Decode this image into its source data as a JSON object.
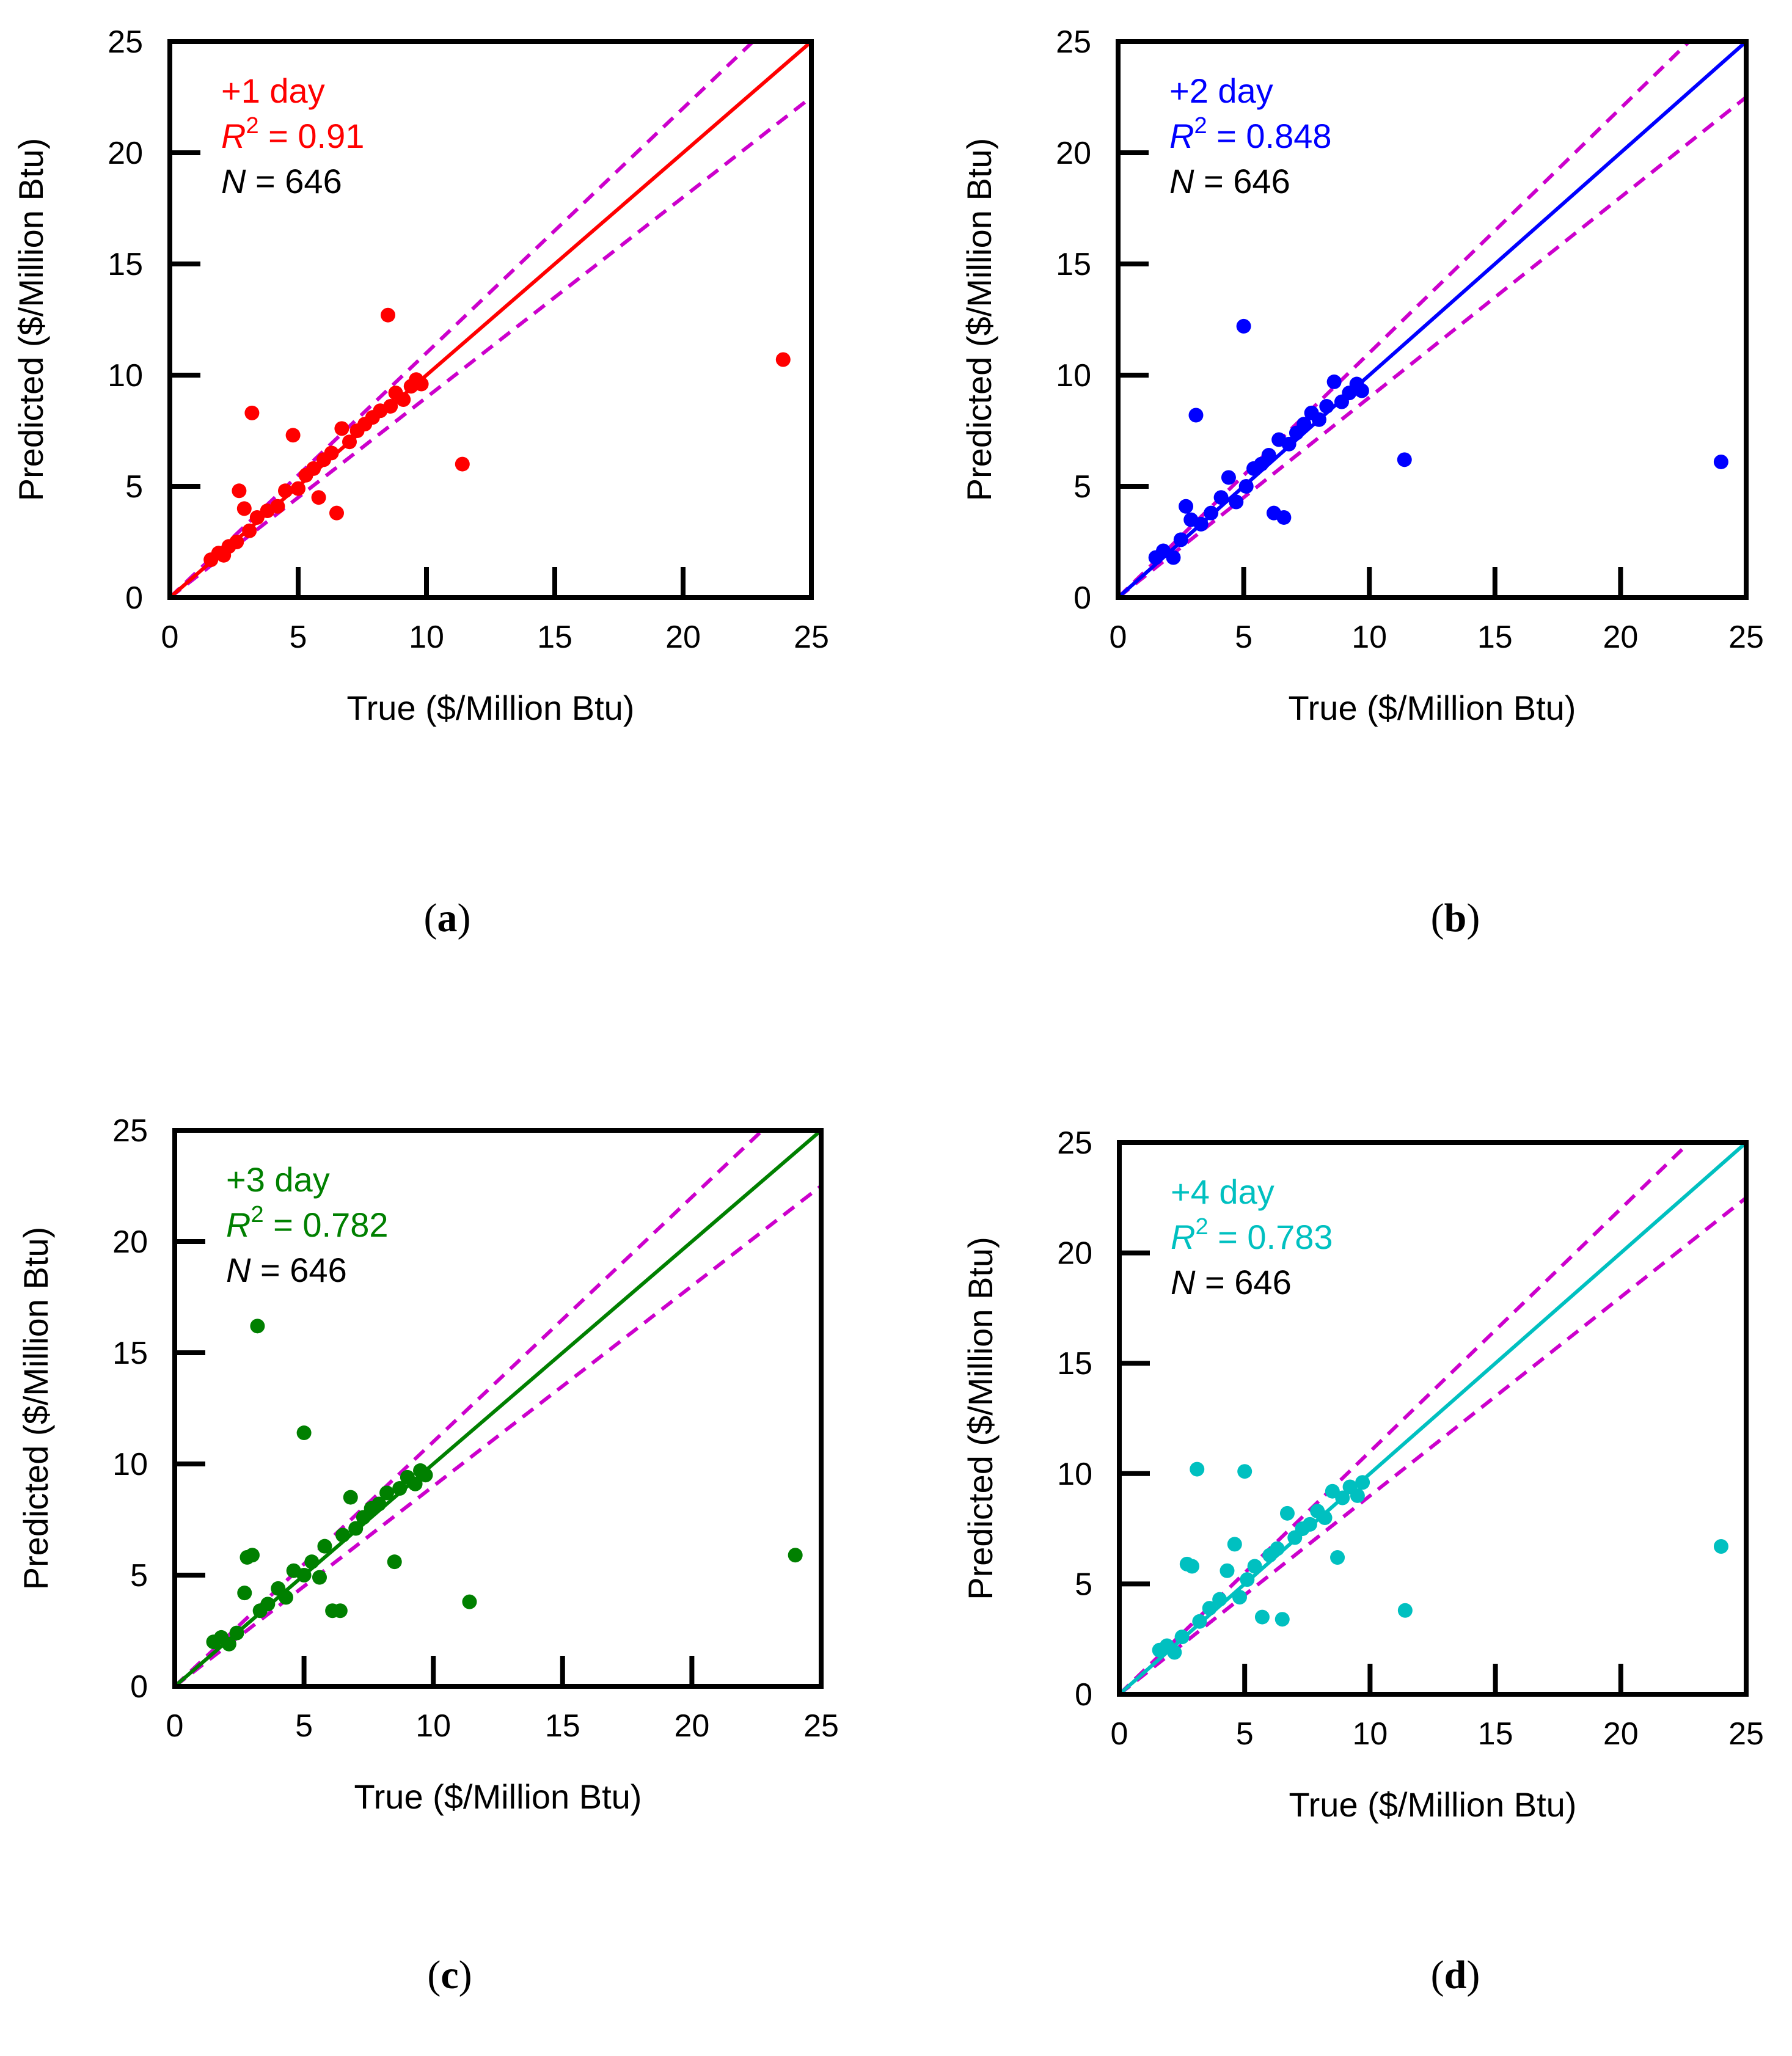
{
  "figure": {
    "panels": [
      {
        "caption_letter": "a",
        "annotation_line1": "+1 day",
        "r2_label": "R",
        "r2_sup": "2",
        "r2_value": " = 0.91",
        "n_label": "N",
        "n_value": " = 646",
        "color": "#ff0000"
      },
      {
        "caption_letter": "b",
        "annotation_line1": "+2 day",
        "r2_label": "R",
        "r2_sup": "2",
        "r2_value": " = 0.848",
        "n_label": "N",
        "n_value": " = 646",
        "color": "#0000ff"
      },
      {
        "caption_letter": "c",
        "annotation_line1": "+3 day",
        "r2_label": "R",
        "r2_sup": "2",
        "r2_value": " = 0.782",
        "n_label": "N",
        "n_value": " = 646",
        "color": "#008000"
      },
      {
        "caption_letter": "d",
        "annotation_line1": "+4 day",
        "r2_label": "R",
        "r2_sup": "2",
        "r2_value": " = 0.783",
        "n_label": "N",
        "n_value": " = 646",
        "color": "#00c0c0"
      }
    ],
    "guide_color": "#cc00cc"
  },
  "chart_data": [
    {
      "type": "scatter",
      "title": "",
      "xlabel": "True ($/Million Btu)",
      "ylabel": "Predicted ($/Million Btu)",
      "xlim": [
        0,
        25
      ],
      "ylim": [
        0,
        25
      ],
      "xticks": [
        0,
        5,
        10,
        15,
        20,
        25
      ],
      "yticks": [
        0,
        5,
        10,
        15,
        20,
        25
      ],
      "annotations": [
        "+1 day",
        "R2 = 0.91",
        "N = 646"
      ],
      "reference_lines": {
        "identity": [
          [
            0,
            0
          ],
          [
            25,
            25
          ]
        ],
        "upper_bound_slope": 1.1,
        "lower_bound_slope": 0.9
      },
      "points": [
        [
          1.6,
          1.7
        ],
        [
          1.9,
          2.0
        ],
        [
          2.1,
          1.9
        ],
        [
          2.3,
          2.3
        ],
        [
          2.6,
          2.5
        ],
        [
          2.7,
          4.8
        ],
        [
          2.9,
          4.0
        ],
        [
          3.1,
          3.0
        ],
        [
          3.2,
          8.3
        ],
        [
          3.4,
          3.6
        ],
        [
          3.8,
          3.9
        ],
        [
          4.2,
          4.1
        ],
        [
          4.5,
          4.8
        ],
        [
          4.8,
          7.3
        ],
        [
          5.0,
          4.9
        ],
        [
          5.3,
          5.5
        ],
        [
          5.6,
          5.8
        ],
        [
          5.8,
          4.5
        ],
        [
          6.0,
          6.2
        ],
        [
          6.3,
          6.5
        ],
        [
          6.5,
          3.8
        ],
        [
          6.7,
          7.6
        ],
        [
          7.0,
          7.0
        ],
        [
          7.3,
          7.5
        ],
        [
          7.6,
          7.8
        ],
        [
          7.9,
          8.1
        ],
        [
          8.2,
          8.4
        ],
        [
          8.5,
          12.7
        ],
        [
          8.6,
          8.6
        ],
        [
          8.8,
          9.2
        ],
        [
          9.1,
          8.9
        ],
        [
          9.4,
          9.5
        ],
        [
          9.6,
          9.8
        ],
        [
          9.8,
          9.6
        ],
        [
          11.4,
          6.0
        ],
        [
          23.9,
          10.7
        ]
      ]
    },
    {
      "type": "scatter",
      "title": "",
      "xlabel": "True ($/Million Btu)",
      "ylabel": "Predicted ($/Million Btu)",
      "xlim": [
        0,
        25
      ],
      "ylim": [
        0,
        25
      ],
      "xticks": [
        0,
        5,
        10,
        15,
        20,
        25
      ],
      "yticks": [
        0,
        5,
        10,
        15,
        20,
        25
      ],
      "annotations": [
        "+2 day",
        "R2 = 0.848",
        "N = 646"
      ],
      "reference_lines": {
        "identity": [
          [
            0,
            0
          ],
          [
            25,
            25
          ]
        ],
        "upper_bound_slope": 1.1,
        "lower_bound_slope": 0.9
      },
      "points": [
        [
          1.5,
          1.8
        ],
        [
          1.8,
          2.1
        ],
        [
          2.2,
          1.8
        ],
        [
          2.5,
          2.6
        ],
        [
          2.7,
          4.1
        ],
        [
          2.9,
          3.5
        ],
        [
          3.1,
          8.2
        ],
        [
          3.3,
          3.3
        ],
        [
          3.7,
          3.8
        ],
        [
          4.1,
          4.5
        ],
        [
          4.4,
          5.4
        ],
        [
          4.7,
          4.3
        ],
        [
          5.0,
          12.2
        ],
        [
          5.1,
          5.0
        ],
        [
          5.4,
          5.8
        ],
        [
          5.7,
          6.0
        ],
        [
          6.0,
          6.4
        ],
        [
          6.2,
          3.8
        ],
        [
          6.4,
          7.1
        ],
        [
          6.6,
          3.6
        ],
        [
          6.8,
          6.9
        ],
        [
          7.1,
          7.4
        ],
        [
          7.4,
          7.8
        ],
        [
          7.7,
          8.3
        ],
        [
          8.0,
          8.0
        ],
        [
          8.3,
          8.6
        ],
        [
          8.6,
          9.7
        ],
        [
          8.9,
          8.8
        ],
        [
          9.2,
          9.2
        ],
        [
          9.5,
          9.6
        ],
        [
          9.7,
          9.3
        ],
        [
          11.4,
          6.2
        ],
        [
          24.0,
          6.1
        ]
      ]
    },
    {
      "type": "scatter",
      "title": "",
      "xlabel": "True ($/Million Btu)",
      "ylabel": "Predicted ($/Million Btu)",
      "xlim": [
        0,
        25
      ],
      "ylim": [
        0,
        25
      ],
      "xticks": [
        0,
        5,
        10,
        15,
        20,
        25
      ],
      "yticks": [
        0,
        5,
        10,
        15,
        20,
        25
      ],
      "annotations": [
        "+3 day",
        "R2 = 0.782",
        "N = 646"
      ],
      "reference_lines": {
        "identity": [
          [
            0,
            0
          ],
          [
            25,
            25
          ]
        ],
        "upper_bound_slope": 1.1,
        "lower_bound_slope": 0.9
      },
      "points": [
        [
          1.5,
          2.0
        ],
        [
          1.8,
          2.2
        ],
        [
          2.1,
          1.9
        ],
        [
          2.4,
          2.4
        ],
        [
          2.7,
          4.2
        ],
        [
          2.8,
          5.8
        ],
        [
          3.0,
          5.9
        ],
        [
          3.2,
          16.2
        ],
        [
          3.3,
          3.4
        ],
        [
          3.6,
          3.7
        ],
        [
          4.0,
          4.4
        ],
        [
          4.3,
          4.0
        ],
        [
          4.6,
          5.2
        ],
        [
          5.0,
          11.4
        ],
        [
          5.0,
          5.0
        ],
        [
          5.3,
          5.6
        ],
        [
          5.6,
          4.9
        ],
        [
          5.8,
          6.3
        ],
        [
          6.1,
          3.4
        ],
        [
          6.4,
          3.4
        ],
        [
          6.5,
          6.8
        ],
        [
          6.8,
          8.5
        ],
        [
          7.0,
          7.1
        ],
        [
          7.3,
          7.6
        ],
        [
          7.6,
          8.0
        ],
        [
          7.9,
          8.2
        ],
        [
          8.2,
          8.7
        ],
        [
          8.5,
          5.6
        ],
        [
          8.7,
          8.9
        ],
        [
          9.0,
          9.4
        ],
        [
          9.3,
          9.1
        ],
        [
          9.5,
          9.7
        ],
        [
          9.7,
          9.5
        ],
        [
          11.4,
          3.8
        ],
        [
          24.0,
          5.9
        ]
      ]
    },
    {
      "type": "scatter",
      "title": "",
      "xlabel": "True ($/Million Btu)",
      "ylabel": "Predicted ($/Million Btu)",
      "xlim": [
        0,
        25
      ],
      "ylim": [
        0,
        25
      ],
      "xticks": [
        0,
        5,
        10,
        15,
        20,
        25
      ],
      "yticks": [
        0,
        5,
        10,
        15,
        20,
        25
      ],
      "annotations": [
        "+4 day",
        "R2 = 0.783",
        "N = 646"
      ],
      "reference_lines": {
        "identity": [
          [
            0,
            0
          ],
          [
            25,
            25
          ]
        ],
        "upper_bound_slope": 1.1,
        "lower_bound_slope": 0.9
      },
      "points": [
        [
          1.6,
          2.0
        ],
        [
          1.9,
          2.2
        ],
        [
          2.2,
          1.9
        ],
        [
          2.5,
          2.6
        ],
        [
          2.7,
          5.9
        ],
        [
          2.9,
          5.8
        ],
        [
          3.1,
          10.2
        ],
        [
          3.2,
          3.3
        ],
        [
          3.6,
          3.9
        ],
        [
          4.0,
          4.3
        ],
        [
          4.3,
          5.6
        ],
        [
          4.6,
          6.8
        ],
        [
          4.8,
          4.4
        ],
        [
          5.0,
          10.1
        ],
        [
          5.1,
          5.2
        ],
        [
          5.4,
          5.8
        ],
        [
          5.7,
          3.5
        ],
        [
          6.0,
          6.3
        ],
        [
          6.3,
          6.6
        ],
        [
          6.5,
          3.4
        ],
        [
          6.7,
          8.2
        ],
        [
          7.0,
          7.1
        ],
        [
          7.3,
          7.5
        ],
        [
          7.6,
          7.7
        ],
        [
          7.9,
          8.3
        ],
        [
          8.2,
          8.0
        ],
        [
          8.5,
          9.2
        ],
        [
          8.7,
          6.2
        ],
        [
          8.9,
          8.9
        ],
        [
          9.2,
          9.4
        ],
        [
          9.5,
          9.0
        ],
        [
          9.7,
          9.6
        ],
        [
          11.4,
          3.8
        ],
        [
          24.0,
          6.7
        ]
      ]
    }
  ]
}
